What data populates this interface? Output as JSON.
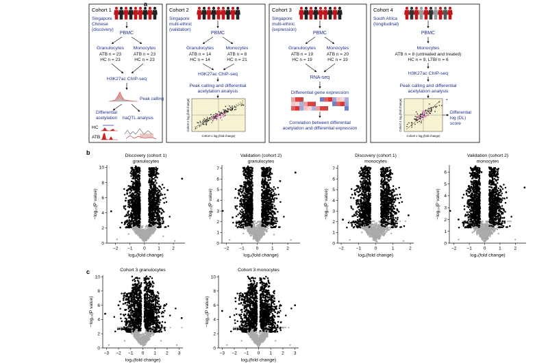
{
  "panel_labels": {
    "a": "a",
    "b": "b",
    "c": "c"
  },
  "cohorts": [
    {
      "title": "Cohort 1",
      "desc": [
        "Singapore",
        "Chinese",
        "(discovery)"
      ],
      "pbmc": "PBMC",
      "branches": [
        {
          "cell": "Granulocytes",
          "lines": [
            "ATB n = 23",
            "HC n = 23"
          ]
        },
        {
          "cell": "Monocytes",
          "lines": [
            "ATB n = 23",
            "HC n = 23"
          ]
        }
      ],
      "assay": "H3K27ac ChIP-seq",
      "peak": "Peak calling",
      "diff": [
        "Differential",
        "acetylation"
      ],
      "haqtl": "haQTL analysis",
      "tracks": [
        "HC",
        "ATB"
      ]
    },
    {
      "title": "Cohort 2",
      "desc": [
        "Singapore",
        "multi-ethnic",
        "(validation)"
      ],
      "pbmc": "PBMC",
      "branches": [
        {
          "cell": "Granulocytes",
          "lines": [
            "ATB n = 14",
            "HC n = 14"
          ]
        },
        {
          "cell": "Monocytes",
          "lines": [
            "ATB n = 8",
            "HC n = 21"
          ]
        }
      ],
      "assay": "H3K27ac ChiP-seq",
      "analysis": [
        "Peak calling and differential",
        "acetylation analysis"
      ],
      "scatter_xlabel": "Cohort 1 log₂(fold change)",
      "scatter_ylabel": "Cohort 2 log₂(fold change)"
    },
    {
      "title": "Cohort 3",
      "desc": [
        "Singapore",
        "multi-ethnic",
        "(expression)"
      ],
      "pbmc": "PBMC",
      "branches": [
        {
          "cell": "Granulocytes",
          "lines": [
            "ATB n = 19",
            "HC n = 19"
          ]
        },
        {
          "cell": "Monocytes",
          "lines": [
            "ATB n = 20",
            "HC n = 19"
          ]
        }
      ],
      "assay": "RNA-seq",
      "dge": "Differential gene expression",
      "corr": [
        "Correlation between differential",
        "acetylation and differential expression"
      ]
    },
    {
      "title": "Cohort 4",
      "desc": [
        "South Africa",
        "(longitudinal)"
      ],
      "pbmc": "PBMC",
      "cell": "Monocytes",
      "lines": [
        "ATB n = 8 (untreated and treated)",
        "HC n = 9, LTBI n = 6"
      ],
      "assay": "H3K27ac ChIP-seq",
      "analysis": [
        "Peak calling and differential",
        "acetylation analysis"
      ],
      "dl": [
        "Differential",
        "log (DL)",
        "score"
      ],
      "scatter_xlabel": "Cohort 1 log₂(fold change)",
      "scatter_ylabel": "Cohort 4 log₂(fold change)"
    }
  ],
  "chart_data": [
    {
      "type": "scatter",
      "panel": "b",
      "title": [
        "Discovery (cohort 1)",
        "granulocytes"
      ],
      "xlabel": "log₂(fold change)",
      "ylabel": "−log₁₀(P value)",
      "xlim": [
        -2.6,
        2.8
      ],
      "ylim": [
        0,
        10.3
      ],
      "xticks": [
        -2,
        -1,
        0,
        1,
        2
      ],
      "yticks": [
        0,
        2,
        4,
        6,
        8,
        10
      ],
      "series": [
        {
          "color": "#aaaaaa",
          "description": "non-significant peaks",
          "x": [
            -1.9,
            -1.1,
            -0.6,
            0.6,
            1.3,
            2.1
          ],
          "y": [
            0.5,
            1.2,
            1.4,
            1.3,
            0.9,
            0.3
          ]
        },
        {
          "color": "#000000",
          "description": "significant peaks",
          "x": [
            -2.3,
            -1.3,
            -0.5,
            0.5,
            1.6,
            2.6
          ],
          "y": [
            4.2,
            5.6,
            9.8,
            9.9,
            7.0,
            8.5
          ]
        }
      ]
    },
    {
      "type": "scatter",
      "panel": "b",
      "title": [
        "Validation (cohort 2)",
        "granulocytes"
      ],
      "xlabel": "log₂(fold change)",
      "ylabel": "−log₁₀(P value)",
      "xlim": [
        -2.3,
        2.8
      ],
      "ylim": [
        0,
        7.3
      ],
      "xticks": [
        -2,
        -1,
        0,
        1,
        2
      ],
      "yticks": [
        0,
        1,
        2,
        3,
        4,
        5,
        6,
        7
      ],
      "series": [
        {
          "color": "#aaaaaa",
          "description": "non-significant peaks",
          "x": [
            -1.8,
            -0.9,
            -0.4,
            0.4,
            1.1,
            2.2
          ],
          "y": [
            0.3,
            0.9,
            1.0,
            1.0,
            0.8,
            0.3
          ]
        },
        {
          "color": "#000000",
          "description": "significant peaks",
          "x": [
            -1.6,
            -0.8,
            -0.3,
            0.3,
            1.5,
            2.5
          ],
          "y": [
            2.4,
            4.2,
            7.0,
            7.0,
            5.8,
            6.6
          ]
        }
      ]
    },
    {
      "type": "scatter",
      "panel": "b",
      "title": [
        "Discovery (cohort 1)",
        "monocytes"
      ],
      "xlabel": "log₂(fold change)",
      "ylabel": "−log₁₀(P value)",
      "xlim": [
        -2.2,
        2.2
      ],
      "ylim": [
        0,
        7.3
      ],
      "xticks": [
        -2,
        -1,
        0,
        1,
        2
      ],
      "yticks": [
        0,
        1,
        2,
        3,
        4,
        5,
        6,
        7
      ],
      "series": [
        {
          "color": "#aaaaaa",
          "description": "non-significant peaks",
          "x": [
            -1.5,
            -0.8,
            -0.3,
            0.3,
            0.9,
            1.6
          ],
          "y": [
            0.3,
            1.0,
            1.4,
            1.3,
            0.9,
            0.2
          ]
        },
        {
          "color": "#000000",
          "description": "significant peaks",
          "x": [
            -1.9,
            -1.0,
            -0.3,
            0.3,
            1.1,
            1.9
          ],
          "y": [
            2.2,
            3.4,
            7.0,
            6.9,
            4.1,
            2.6
          ]
        }
      ]
    },
    {
      "type": "scatter",
      "panel": "b",
      "title": [
        "Validation (cohort 2)",
        "monocytes"
      ],
      "xlabel": "log₂(fold change)",
      "ylabel": "−log₁₀(P value)",
      "xlim": [
        -2.3,
        2.7
      ],
      "ylim": [
        0,
        6.6
      ],
      "xticks": [
        -2,
        -1,
        0,
        1,
        2
      ],
      "yticks": [
        0,
        1,
        2,
        3,
        4,
        5,
        6
      ],
      "series": [
        {
          "color": "#aaaaaa",
          "description": "non-significant peaks",
          "x": [
            -1.7,
            -0.8,
            -0.3,
            0.3,
            0.9,
            2.0
          ],
          "y": [
            0.3,
            0.9,
            1.1,
            1.1,
            0.8,
            0.3
          ]
        },
        {
          "color": "#000000",
          "description": "significant peaks",
          "x": [
            -1.7,
            -0.7,
            -0.2,
            0.3,
            1.4,
            2.6
          ],
          "y": [
            2.0,
            3.6,
            6.0,
            6.4,
            4.3,
            4.7
          ]
        }
      ]
    },
    {
      "type": "scatter",
      "panel": "c",
      "title": [
        "Cohort 3 granulocytes"
      ],
      "xlabel": "log₂(fold change)",
      "ylabel": "−log₁₀(P value)",
      "xlim": [
        -3.3,
        3.3
      ],
      "ylim": [
        0,
        10.2
      ],
      "xticks": [
        -3,
        -2,
        -1,
        0,
        1,
        2,
        3
      ],
      "yticks": [
        0,
        2,
        4,
        6,
        8,
        10
      ],
      "series": [
        {
          "color": "#aaaaaa",
          "description": "non-significant genes",
          "x": [
            -2.8,
            -1.5,
            -0.5,
            0.5,
            1.5,
            2.8
          ],
          "y": [
            0.4,
            1.0,
            1.5,
            1.5,
            1.0,
            0.4
          ]
        },
        {
          "color": "#000000",
          "description": "significant genes",
          "x": [
            -3.1,
            -2.0,
            -0.8,
            0.3,
            1.3,
            3.2
          ],
          "y": [
            4.8,
            6.0,
            8.0,
            9.7,
            7.0,
            4.2
          ]
        }
      ]
    },
    {
      "type": "scatter",
      "panel": "c",
      "title": [
        "Cohort 3 monocytes"
      ],
      "xlabel": "log₂(fold change)",
      "ylabel": "−log₁₀(P value)",
      "xlim": [
        -3.3,
        3.3
      ],
      "ylim": [
        0,
        10.2
      ],
      "xticks": [
        -3,
        -2,
        -1,
        0,
        1,
        2,
        3
      ],
      "yticks": [
        0,
        2,
        4,
        6,
        8,
        10
      ],
      "series": [
        {
          "color": "#aaaaaa",
          "description": "non-significant genes",
          "x": [
            -2.6,
            -1.4,
            -0.5,
            0.5,
            1.4,
            2.6
          ],
          "y": [
            0.4,
            1.0,
            1.5,
            1.5,
            1.0,
            0.4
          ]
        },
        {
          "color": "#000000",
          "description": "significant genes",
          "x": [
            -3.0,
            -1.9,
            -0.8,
            0.2,
            1.3,
            3.0
          ],
          "y": [
            5.2,
            7.0,
            9.8,
            9.6,
            8.0,
            6.0
          ]
        }
      ]
    }
  ]
}
